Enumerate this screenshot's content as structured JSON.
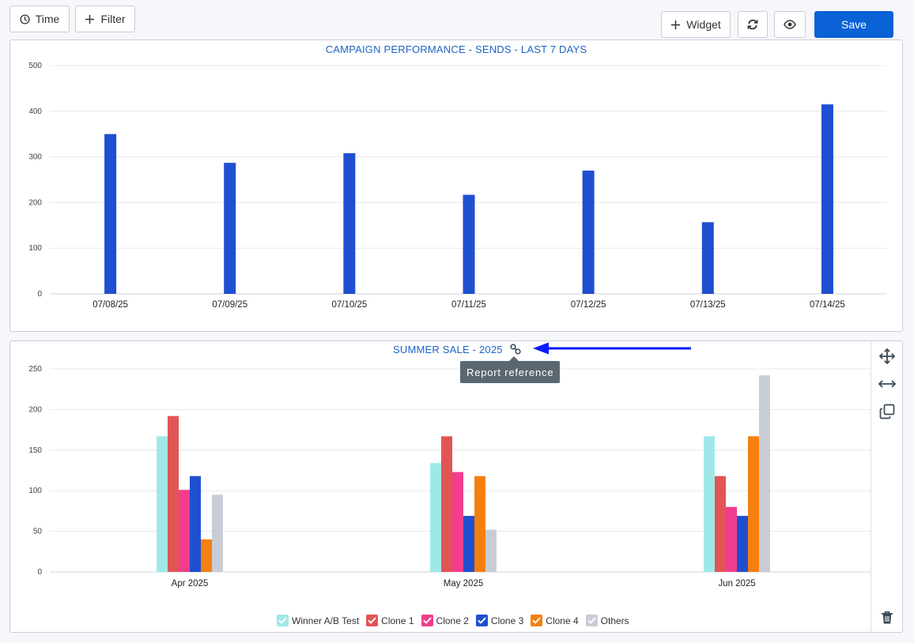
{
  "toolbar": {
    "time_label": "Time",
    "filter_label": "Filter",
    "widget_label": "Widget",
    "save_label": "Save"
  },
  "colors": {
    "primary": "#0b62d6",
    "bar_blue": "#1f4fd1",
    "title_blue": "#1c64c4",
    "arrow_blue": "#0a1aff"
  },
  "tooltip": {
    "text": "Report reference"
  },
  "chart_data": [
    {
      "type": "bar",
      "title": "CAMPAIGN PERFORMANCE - SENDS - LAST 7 DAYS",
      "categories": [
        "07/08/25",
        "07/09/25",
        "07/10/25",
        "07/11/25",
        "07/12/25",
        "07/13/25",
        "07/14/25"
      ],
      "values": [
        350,
        287,
        308,
        217,
        270,
        157,
        415
      ],
      "ylim": [
        0,
        500
      ],
      "yticks": [
        0,
        100,
        200,
        300,
        400,
        500
      ],
      "grid": true
    },
    {
      "type": "bar",
      "title": "SUMMER SALE - 2025",
      "categories": [
        "Apr 2025",
        "May 2025",
        "Jun 2025"
      ],
      "ylim": [
        0,
        250
      ],
      "yticks": [
        0,
        50,
        100,
        150,
        200,
        250
      ],
      "grid": true,
      "legend_position": "bottom",
      "series": [
        {
          "name": "Winner A/B Test",
          "color": "#a0e8e8",
          "values": [
            167,
            134,
            167
          ]
        },
        {
          "name": "Clone 1",
          "color": "#e25555",
          "values": [
            192,
            167,
            118
          ]
        },
        {
          "name": "Clone 2",
          "color": "#f23d8c",
          "values": [
            101,
            123,
            80
          ]
        },
        {
          "name": "Clone 3",
          "color": "#1f4fd1",
          "values": [
            118,
            69,
            69
          ]
        },
        {
          "name": "Clone 4",
          "color": "#f5800f",
          "values": [
            40,
            118,
            167
          ]
        },
        {
          "name": "Others",
          "color": "#c8ccd5",
          "values": [
            95,
            52,
            242
          ]
        }
      ]
    }
  ]
}
